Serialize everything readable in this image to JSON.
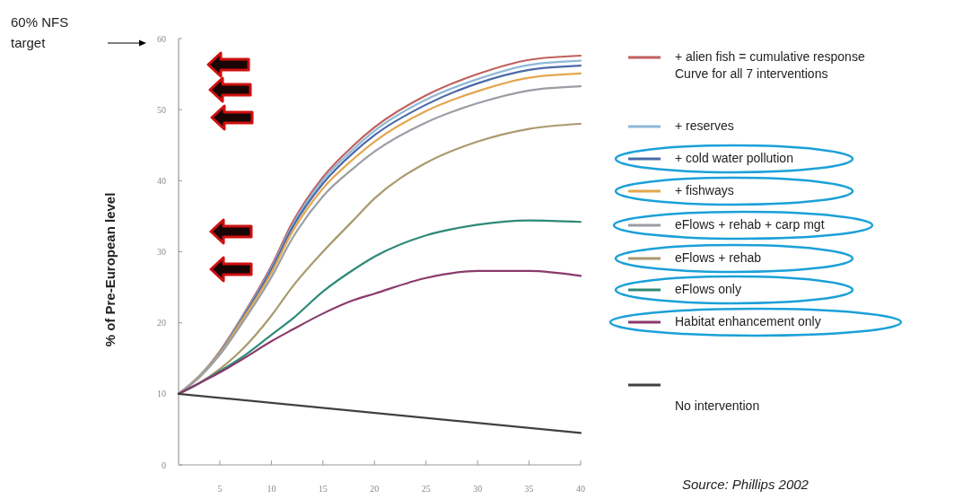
{
  "chart_data": {
    "type": "line",
    "ylabel": "% of Pre-European level",
    "xlim": [
      1,
      40
    ],
    "ylim": [
      0,
      60
    ],
    "xticks": [
      5,
      10,
      15,
      20,
      25,
      30,
      35,
      40
    ],
    "yticks": [
      0,
      10,
      20,
      30,
      40,
      50,
      60
    ],
    "grid": false,
    "legend": "right",
    "marker": "none",
    "line_style": "solid",
    "annotations": [
      "60% NFS target",
      "Source: Phillips 2002"
    ],
    "x": [
      1,
      3,
      5,
      7,
      10,
      12,
      15,
      18,
      20,
      25,
      30,
      35,
      40
    ],
    "series": [
      {
        "name": "+ alien fish = cumulative response\nCurve for all 7 interventions",
        "color": "#c0605e",
        "values": [
          10,
          12.5,
          16,
          20.5,
          28,
          34,
          40.5,
          45,
          47.5,
          52,
          55,
          57,
          57.6
        ]
      },
      {
        "name": "+ reserves",
        "color": "#8fb8d8",
        "values": [
          10,
          12.5,
          15.9,
          20.4,
          27.7,
          33.6,
          40.1,
          44.5,
          47,
          51.4,
          54.3,
          56.3,
          56.9
        ]
      },
      {
        "name": "+ cold water pollution",
        "color": "#4a6aa8",
        "values": [
          10,
          12.4,
          15.8,
          20.2,
          27.5,
          33.3,
          39.6,
          44,
          46.4,
          50.7,
          53.7,
          55.6,
          56.2
        ]
      },
      {
        "name": "+ fishways",
        "color": "#e3a74f",
        "values": [
          10,
          12.4,
          15.7,
          20,
          27,
          32.7,
          38.9,
          43.1,
          45.5,
          49.8,
          52.6,
          54.5,
          55.1
        ]
      },
      {
        "name": "eFlows + rehab + carp mgt",
        "color": "#9a9ea4",
        "values": [
          10,
          12.3,
          15.5,
          19.6,
          26.4,
          31.8,
          37.8,
          41.8,
          44.1,
          48.2,
          50.9,
          52.7,
          53.3
        ]
      },
      {
        "name": "eFlows + rehab",
        "color": "#a99a6e",
        "values": [
          10,
          11.5,
          13.5,
          16,
          21,
          25,
          30,
          34.5,
          37.5,
          42.5,
          45.5,
          47.3,
          48
        ]
      },
      {
        "name": "eFlows only",
        "color": "#2e8a78",
        "values": [
          10,
          11.5,
          13.2,
          15,
          18.3,
          20.5,
          24.4,
          27.5,
          29.3,
          32.3,
          33.8,
          34.4,
          34.2
        ]
      },
      {
        "name": "Habitat enhancement only",
        "color": "#8a3a6a",
        "values": [
          10,
          11.5,
          13,
          14.7,
          17.4,
          19,
          21.3,
          23.2,
          24.1,
          26.3,
          27.3,
          27.3,
          26.6
        ]
      },
      {
        "name": "No intervention",
        "color": "#404040",
        "x": [
          1,
          40
        ],
        "values": [
          10,
          4.5
        ]
      }
    ]
  }
}
